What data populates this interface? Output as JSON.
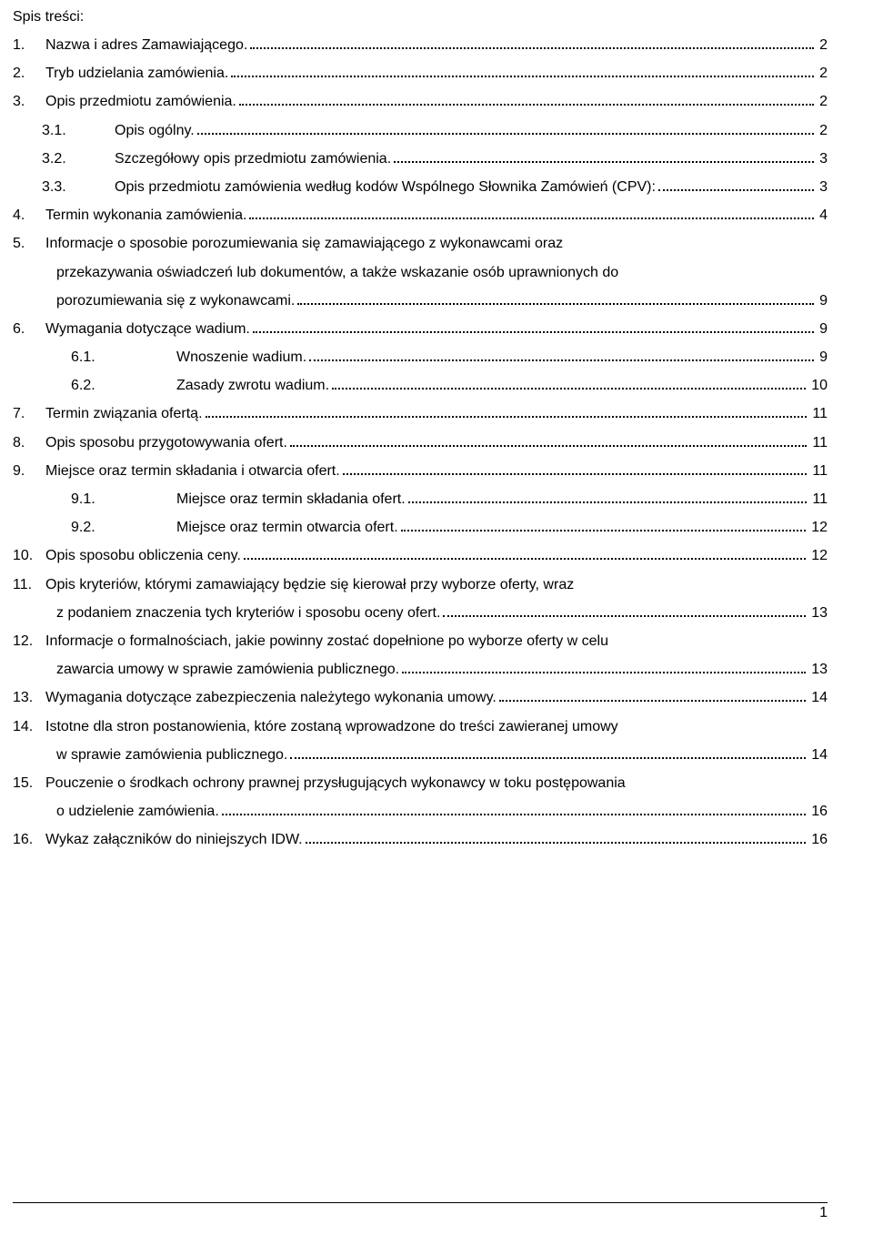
{
  "title": "Spis treści:",
  "footer_page": "1",
  "lines": [
    {
      "kind": "item",
      "indent": 0,
      "num": "1.",
      "text": "Nazwa i adres Zamawiającego.",
      "page": "2"
    },
    {
      "kind": "item",
      "indent": 0,
      "num": "2.",
      "text": "Tryb udzielania zamówienia.",
      "page": "2"
    },
    {
      "kind": "item",
      "indent": 0,
      "num": "3.",
      "text": "Opis przedmiotu zamówienia.",
      "page": "2"
    },
    {
      "kind": "item",
      "indent": 1,
      "num": "3.1.",
      "text": "Opis ogólny.",
      "page": "2"
    },
    {
      "kind": "item",
      "indent": 1,
      "num": "3.2.",
      "text": "Szczegółowy opis przedmiotu zamówienia.",
      "page": "3"
    },
    {
      "kind": "item",
      "indent": 1,
      "num": "3.3.",
      "text": "Opis przedmiotu zamówienia według kodów Wspólnego Słownika Zamówień (CPV):",
      "page": "3"
    },
    {
      "kind": "item",
      "indent": 0,
      "num": "4.",
      "text": "Termin wykonania zamówienia.",
      "page": "4"
    },
    {
      "kind": "item",
      "indent": 0,
      "num": "5.",
      "text": "Informacje o sposobie porozumiewania się zamawiającego z wykonawcami oraz",
      "page": null
    },
    {
      "kind": "cont",
      "text": "przekazywania oświadczeń lub dokumentów, a także wskazanie osób uprawnionych do",
      "page": null
    },
    {
      "kind": "cont",
      "text": "porozumiewania się z wykonawcami.",
      "page": "9"
    },
    {
      "kind": "item",
      "indent": 0,
      "num": "6.",
      "text": "Wymagania dotyczące wadium.",
      "page": "9"
    },
    {
      "kind": "item",
      "indent": 2,
      "num": "6.1.",
      "text": "Wnoszenie wadium.",
      "page": "9"
    },
    {
      "kind": "item",
      "indent": 2,
      "num": "6.2.",
      "text": "Zasady zwrotu wadium.",
      "page": "10"
    },
    {
      "kind": "item",
      "indent": 0,
      "num": "7.",
      "text": "Termin związania ofertą.",
      "page": "11"
    },
    {
      "kind": "item",
      "indent": 0,
      "num": "8.",
      "text": "Opis sposobu przygotowywania ofert.",
      "page": "11"
    },
    {
      "kind": "item",
      "indent": 0,
      "num": "9.",
      "text": "Miejsce oraz termin składania i otwarcia ofert.",
      "page": "11"
    },
    {
      "kind": "item",
      "indent": 2,
      "num": "9.1.",
      "text": "Miejsce oraz termin składania ofert.",
      "page": "11"
    },
    {
      "kind": "item",
      "indent": 2,
      "num": "9.2.",
      "text": "Miejsce oraz termin otwarcia ofert.",
      "page": "12"
    },
    {
      "kind": "item",
      "indent": 0,
      "num": "10.",
      "text": "Opis sposobu obliczenia ceny.",
      "page": "12"
    },
    {
      "kind": "item",
      "indent": 0,
      "num": "11.",
      "text": "Opis kryteriów, którymi zamawiający będzie się kierował przy wyborze oferty, wraz",
      "page": null
    },
    {
      "kind": "cont",
      "text": "z podaniem znaczenia tych kryteriów i sposobu oceny ofert.",
      "page": "13"
    },
    {
      "kind": "item",
      "indent": 0,
      "num": "12.",
      "text": "Informacje o formalnościach, jakie powinny zostać dopełnione po wyborze oferty w celu",
      "page": null
    },
    {
      "kind": "cont",
      "text": "zawarcia umowy w sprawie zamówienia publicznego.",
      "page": "13"
    },
    {
      "kind": "item",
      "indent": 0,
      "num": "13.",
      "text": "Wymagania dotyczące zabezpieczenia należytego wykonania umowy.",
      "page": "14"
    },
    {
      "kind": "item",
      "indent": 0,
      "num": "14.",
      "text": "Istotne dla stron postanowienia, które zostaną wprowadzone do treści zawieranej umowy",
      "page": null
    },
    {
      "kind": "cont",
      "text": "w sprawie zamówienia publicznego.",
      "page": "14"
    },
    {
      "kind": "item",
      "indent": 0,
      "num": "15.",
      "text": "Pouczenie o środkach ochrony prawnej przysługujących wykonawcy w toku postępowania",
      "page": null
    },
    {
      "kind": "cont",
      "text": "o udzielenie zamówienia.",
      "page": "16"
    },
    {
      "kind": "item",
      "indent": 0,
      "num": "16.",
      "text": "Wykaz załączników do niniejszych IDW.",
      "page": "16"
    }
  ]
}
